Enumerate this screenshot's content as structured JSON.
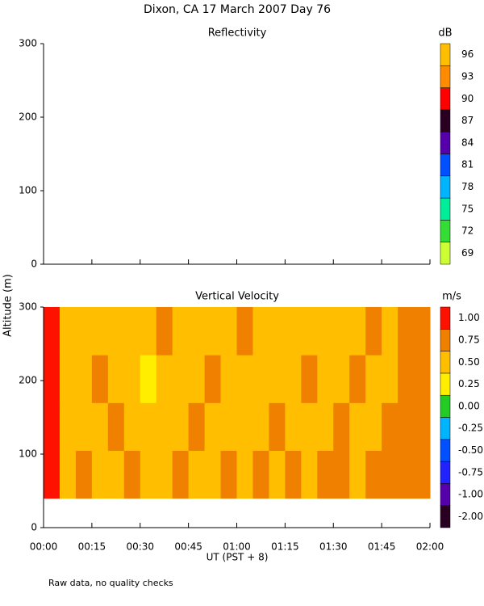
{
  "title": "Dixon, CA 17 March 2007  Day  76",
  "footnote": "Raw data, no quality checks",
  "ylabel": "Altitude (m)",
  "chart_data": [
    {
      "type": "heatmap",
      "title": "Reflectivity",
      "ylim": [
        0,
        300
      ],
      "yticks": [
        0,
        100,
        200,
        300
      ],
      "colorbar_unit": "dB",
      "levels": [
        69,
        72,
        75,
        78,
        81,
        84,
        87,
        90,
        93,
        96
      ],
      "colors": [
        "#ccff33",
        "#33dd33",
        "#00ee99",
        "#00b4ff",
        "#0050ff",
        "#5500aa",
        "#2a0022",
        "#ff0000",
        "#ff8c00",
        "#ffbf00"
      ],
      "x_edges": [],
      "y_edges": [],
      "z": []
    },
    {
      "type": "heatmap",
      "title": "Vertical Velocity",
      "xlabel": "UT  (PST + 8)",
      "xlim": [
        0,
        120
      ],
      "xticks": [
        {
          "value": 0,
          "label": "00:00"
        },
        {
          "value": 15,
          "label": "00:15"
        },
        {
          "value": 30,
          "label": "00:30"
        },
        {
          "value": 45,
          "label": "00:45"
        },
        {
          "value": 60,
          "label": "01:00"
        },
        {
          "value": 75,
          "label": "01:15"
        },
        {
          "value": 90,
          "label": "01:30"
        },
        {
          "value": 105,
          "label": "01:45"
        },
        {
          "value": 120,
          "label": "02:00"
        }
      ],
      "ylim": [
        0,
        300
      ],
      "yticks": [
        0,
        100,
        200,
        300
      ],
      "colorbar_unit": "m/s",
      "levels": [
        {
          "value": -2,
          "label": "-2.00"
        },
        {
          "value": -1,
          "label": "-1.00"
        },
        {
          "value": -0.75,
          "label": "-0.75"
        },
        {
          "value": -0.5,
          "label": "-0.50"
        },
        {
          "value": -0.25,
          "label": "-0.25"
        },
        {
          "value": 0,
          "label": "0.00"
        },
        {
          "value": 0.25,
          "label": "0.25"
        },
        {
          "value": 0.5,
          "label": "0.50"
        },
        {
          "value": 0.75,
          "label": "0.75"
        },
        {
          "value": 1,
          "label": "1.00"
        }
      ],
      "colors": [
        "#2a0022",
        "#5500aa",
        "#2222ff",
        "#0050ff",
        "#00b4ff",
        "#22cc22",
        "#ffee00",
        "#ffbf00",
        "#f08000",
        "#ff1100"
      ],
      "x_edges": [
        0,
        5,
        10,
        15,
        20,
        25,
        30,
        35,
        40,
        45,
        50,
        55,
        60,
        65,
        70,
        75,
        80,
        85,
        90,
        95,
        100,
        105,
        110,
        115,
        120
      ],
      "y_edges": [
        40,
        105,
        170,
        235,
        300
      ],
      "z": [
        [
          1,
          0.5,
          0.75,
          0.5,
          0.5,
          0.75,
          0.5,
          0.5,
          0.75,
          0.5,
          0.5,
          0.75,
          0.5,
          0.75,
          0.5,
          0.75,
          0.5,
          0.75,
          0.75,
          0.5,
          0.75,
          0.75,
          0.75,
          0.75
        ],
        [
          1,
          0.5,
          0.5,
          0.5,
          0.75,
          0.5,
          0.5,
          0.5,
          0.5,
          0.75,
          0.5,
          0.5,
          0.5,
          0.5,
          0.75,
          0.5,
          0.5,
          0.5,
          0.75,
          0.5,
          0.5,
          0.75,
          0.75,
          0.75
        ],
        [
          1,
          0.5,
          0.5,
          0.75,
          0.5,
          0.5,
          0.25,
          0.5,
          0.5,
          0.5,
          0.75,
          0.5,
          0.5,
          0.5,
          0.5,
          0.5,
          0.75,
          0.5,
          0.5,
          0.75,
          0.5,
          0.5,
          0.75,
          0.75
        ],
        [
          1,
          0.5,
          0.5,
          0.5,
          0.5,
          0.5,
          0.5,
          0.75,
          0.5,
          0.5,
          0.5,
          0.5,
          0.75,
          0.5,
          0.5,
          0.5,
          0.5,
          0.5,
          0.5,
          0.5,
          0.75,
          0.5,
          0.75,
          0.75
        ]
      ]
    }
  ]
}
